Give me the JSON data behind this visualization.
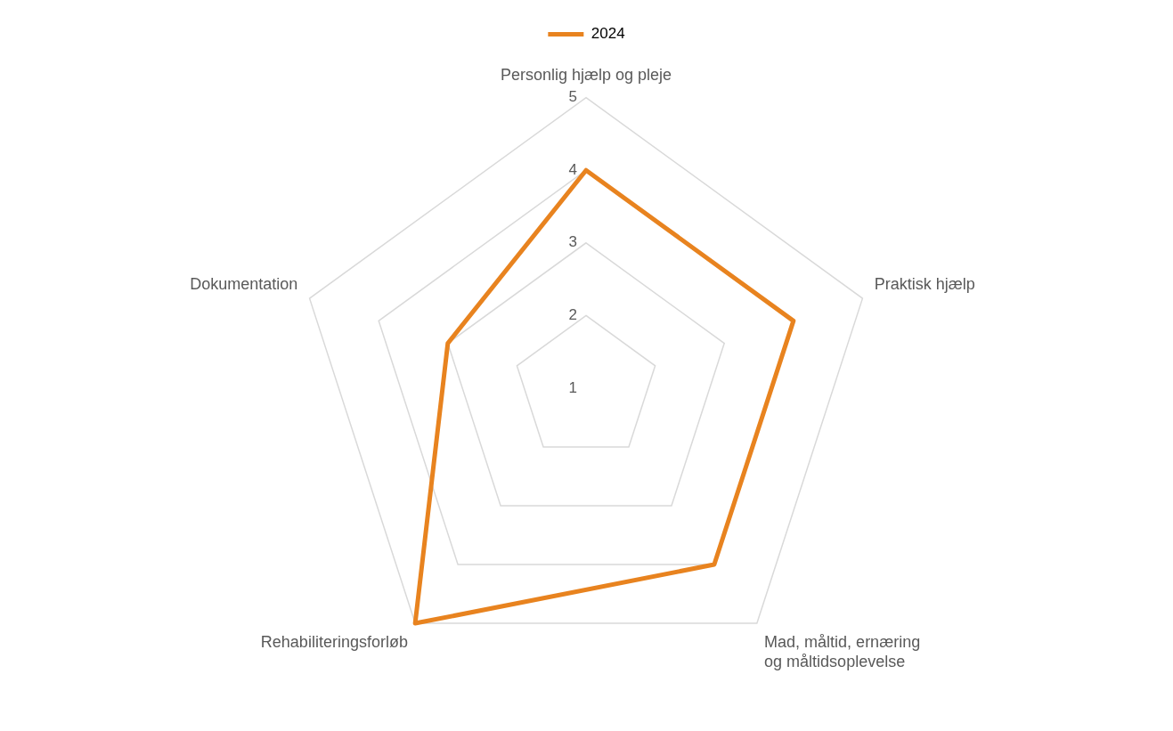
{
  "chart_data": {
    "type": "radar",
    "categories": [
      "Personlig hjælp og pleje",
      "Praktisk hjælp",
      "Mad, måltid, ernæring og måltidsoplevelse",
      "Rehabiliteringsforløb",
      "Dokumentation"
    ],
    "series": [
      {
        "name": "2024",
        "color": "#e8831f",
        "values": [
          4,
          4,
          4,
          5,
          3
        ]
      }
    ],
    "ylim": [
      1,
      5
    ],
    "yticks": [
      1,
      2,
      3,
      4,
      5
    ],
    "grid": true,
    "legend": "top",
    "marker": "none"
  }
}
